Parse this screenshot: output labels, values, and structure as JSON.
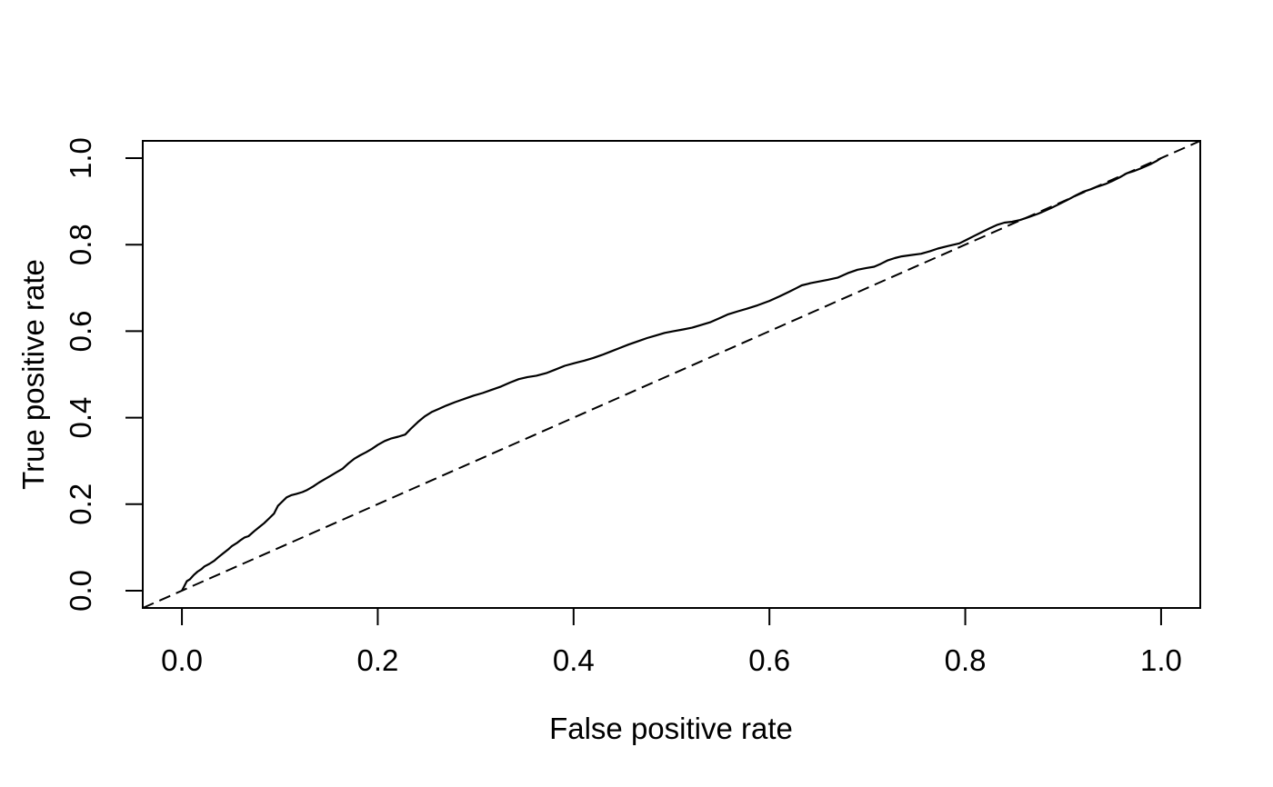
{
  "figure": {
    "background_color": "#ffffff",
    "line_color": "#000000"
  },
  "chart_data": {
    "type": "line",
    "title": "",
    "xlabel": "False positive rate",
    "ylabel": "True positive rate",
    "xlim": [
      -0.04,
      1.04
    ],
    "ylim": [
      -0.04,
      1.04
    ],
    "grid": false,
    "legend": null,
    "x_ticks": {
      "values": [
        0.0,
        0.2,
        0.4,
        0.6,
        0.8,
        1.0
      ],
      "labels": [
        "0.0",
        "0.2",
        "0.4",
        "0.6",
        "0.8",
        "1.0"
      ]
    },
    "y_ticks": {
      "values": [
        0.0,
        0.2,
        0.4,
        0.6,
        0.8,
        1.0
      ],
      "labels": [
        "0.0",
        "0.2",
        "0.4",
        "0.6",
        "0.8",
        "1.0"
      ]
    },
    "series": [
      {
        "name": "roc-curve",
        "line_style": "solid",
        "color": "#000000",
        "points": [
          [
            0.0,
            0.0
          ],
          [
            0.003,
            0.013
          ],
          [
            0.005,
            0.022
          ],
          [
            0.008,
            0.026
          ],
          [
            0.012,
            0.036
          ],
          [
            0.016,
            0.044
          ],
          [
            0.02,
            0.05
          ],
          [
            0.023,
            0.056
          ],
          [
            0.028,
            0.062
          ],
          [
            0.033,
            0.069
          ],
          [
            0.037,
            0.077
          ],
          [
            0.042,
            0.086
          ],
          [
            0.047,
            0.095
          ],
          [
            0.051,
            0.103
          ],
          [
            0.056,
            0.11
          ],
          [
            0.06,
            0.117
          ],
          [
            0.064,
            0.123
          ],
          [
            0.068,
            0.126
          ],
          [
            0.074,
            0.138
          ],
          [
            0.079,
            0.147
          ],
          [
            0.084,
            0.156
          ],
          [
            0.089,
            0.167
          ],
          [
            0.094,
            0.178
          ],
          [
            0.098,
            0.196
          ],
          [
            0.103,
            0.207
          ],
          [
            0.107,
            0.216
          ],
          [
            0.112,
            0.221
          ],
          [
            0.117,
            0.224
          ],
          [
            0.123,
            0.228
          ],
          [
            0.128,
            0.233
          ],
          [
            0.134,
            0.241
          ],
          [
            0.14,
            0.25
          ],
          [
            0.146,
            0.258
          ],
          [
            0.152,
            0.266
          ],
          [
            0.158,
            0.274
          ],
          [
            0.164,
            0.282
          ],
          [
            0.17,
            0.294
          ],
          [
            0.176,
            0.305
          ],
          [
            0.182,
            0.313
          ],
          [
            0.188,
            0.32
          ],
          [
            0.194,
            0.328
          ],
          [
            0.2,
            0.337
          ],
          [
            0.207,
            0.346
          ],
          [
            0.214,
            0.352
          ],
          [
            0.221,
            0.356
          ],
          [
            0.228,
            0.361
          ],
          [
            0.234,
            0.375
          ],
          [
            0.241,
            0.39
          ],
          [
            0.248,
            0.403
          ],
          [
            0.255,
            0.413
          ],
          [
            0.262,
            0.42
          ],
          [
            0.27,
            0.428
          ],
          [
            0.279,
            0.436
          ],
          [
            0.288,
            0.443
          ],
          [
            0.298,
            0.451
          ],
          [
            0.307,
            0.457
          ],
          [
            0.316,
            0.464
          ],
          [
            0.326,
            0.472
          ],
          [
            0.335,
            0.481
          ],
          [
            0.344,
            0.489
          ],
          [
            0.353,
            0.494
          ],
          [
            0.362,
            0.497
          ],
          [
            0.372,
            0.503
          ],
          [
            0.381,
            0.511
          ],
          [
            0.391,
            0.52
          ],
          [
            0.401,
            0.526
          ],
          [
            0.411,
            0.532
          ],
          [
            0.42,
            0.538
          ],
          [
            0.429,
            0.545
          ],
          [
            0.438,
            0.553
          ],
          [
            0.447,
            0.561
          ],
          [
            0.456,
            0.569
          ],
          [
            0.465,
            0.576
          ],
          [
            0.475,
            0.584
          ],
          [
            0.484,
            0.59
          ],
          [
            0.493,
            0.596
          ],
          [
            0.502,
            0.6
          ],
          [
            0.512,
            0.604
          ],
          [
            0.521,
            0.608
          ],
          [
            0.53,
            0.614
          ],
          [
            0.54,
            0.621
          ],
          [
            0.549,
            0.63
          ],
          [
            0.558,
            0.639
          ],
          [
            0.568,
            0.646
          ],
          [
            0.577,
            0.652
          ],
          [
            0.588,
            0.66
          ],
          [
            0.6,
            0.67
          ],
          [
            0.61,
            0.68
          ],
          [
            0.62,
            0.691
          ],
          [
            0.628,
            0.7
          ],
          [
            0.633,
            0.706
          ],
          [
            0.642,
            0.711
          ],
          [
            0.651,
            0.715
          ],
          [
            0.66,
            0.719
          ],
          [
            0.67,
            0.724
          ],
          [
            0.68,
            0.734
          ],
          [
            0.69,
            0.742
          ],
          [
            0.699,
            0.746
          ],
          [
            0.707,
            0.749
          ],
          [
            0.714,
            0.756
          ],
          [
            0.721,
            0.764
          ],
          [
            0.728,
            0.769
          ],
          [
            0.735,
            0.773
          ],
          [
            0.745,
            0.776
          ],
          [
            0.755,
            0.779
          ],
          [
            0.764,
            0.785
          ],
          [
            0.772,
            0.791
          ],
          [
            0.783,
            0.797
          ],
          [
            0.794,
            0.803
          ],
          [
            0.802,
            0.812
          ],
          [
            0.809,
            0.82
          ],
          [
            0.817,
            0.829
          ],
          [
            0.825,
            0.838
          ],
          [
            0.833,
            0.846
          ],
          [
            0.84,
            0.851
          ],
          [
            0.848,
            0.853
          ],
          [
            0.856,
            0.857
          ],
          [
            0.865,
            0.864
          ],
          [
            0.874,
            0.871
          ],
          [
            0.881,
            0.878
          ],
          [
            0.888,
            0.885
          ],
          [
            0.896,
            0.894
          ],
          [
            0.905,
            0.904
          ],
          [
            0.913,
            0.914
          ],
          [
            0.92,
            0.922
          ],
          [
            0.928,
            0.928
          ],
          [
            0.935,
            0.934
          ],
          [
            0.943,
            0.94
          ],
          [
            0.95,
            0.947
          ],
          [
            0.958,
            0.956
          ],
          [
            0.965,
            0.965
          ],
          [
            0.972,
            0.97
          ],
          [
            0.978,
            0.975
          ],
          [
            0.984,
            0.981
          ],
          [
            0.99,
            0.987
          ],
          [
            0.995,
            0.993
          ],
          [
            1.0,
            1.0
          ]
        ]
      },
      {
        "name": "chance-diagonal",
        "line_style": "dashed",
        "color": "#000000",
        "extends_to_plot_edges": true,
        "points": [
          [
            -0.04,
            -0.04
          ],
          [
            1.04,
            1.04
          ]
        ]
      }
    ]
  }
}
